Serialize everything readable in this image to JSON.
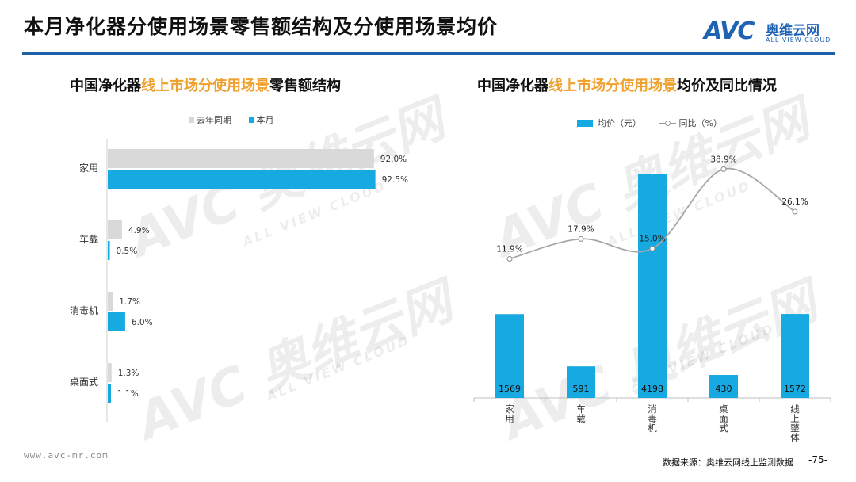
{
  "header": {
    "title": "本月净化器分使用场景零售额结构及分使用场景均价",
    "logo_avc": "AVC",
    "logo_cn": "奥维云网",
    "logo_en": "ALL VIEW CLOUD",
    "accent_color": "#1f5fa8"
  },
  "watermark": {
    "big": "AVC 奥维云网",
    "small": "ALL VIEW CLOUD"
  },
  "left_chart": {
    "heading_pre": "中国净化器",
    "heading_hl": "线上市场分使用场景",
    "heading_post": "零售额结构",
    "legend": [
      "去年同期",
      "本月"
    ]
  },
  "right_chart": {
    "heading_pre": "中国净化器",
    "heading_hl": "线上市场分使用场景",
    "heading_post": "均价及同比情况",
    "legend": [
      "均价（元）",
      "同比（%）"
    ]
  },
  "colors": {
    "last_year": "#d9d9d9",
    "this_month": "#17a9e1",
    "line": "#a6a6a6",
    "highlight": "#f0a02c"
  },
  "chart_data": [
    {
      "type": "bar",
      "orientation": "horizontal",
      "categories": [
        "家用",
        "车载",
        "消毒机",
        "桌面式"
      ],
      "series": [
        {
          "name": "去年同期",
          "values": [
            92.0,
            4.9,
            1.7,
            1.3
          ]
        },
        {
          "name": "本月",
          "values": [
            92.5,
            0.5,
            6.0,
            1.1
          ]
        }
      ],
      "value_labels": {
        "去年同期": [
          "92.0%",
          "4.9%",
          "1.7%",
          "1.3%"
        ],
        "本月": [
          "92.5%",
          "0.5%",
          "6.0%",
          "1.1%"
        ]
      },
      "xlim": [
        0,
        100
      ],
      "legend_position": "top"
    },
    {
      "type": "bar",
      "categories": [
        "家用",
        "车载",
        "消毒机",
        "桌面式",
        "线上整体"
      ],
      "series": [
        {
          "name": "均价（元）",
          "type": "bar",
          "values": [
            1569,
            591,
            4198,
            430,
            1572
          ]
        },
        {
          "name": "同比（%）",
          "type": "line",
          "values": [
            11.9,
            17.9,
            15.0,
            38.9,
            26.1
          ]
        }
      ],
      "line_labels": [
        "11.9%",
        "17.9%",
        "15.0%",
        "38.9%",
        "26.1%"
      ],
      "ylim_bar": [
        0,
        4600
      ],
      "ylim_line": [
        -30,
        44
      ],
      "legend_position": "top"
    }
  ],
  "footer": {
    "url": "www.avc-mr.com",
    "source": "数据来源：奥维云网线上监测数据",
    "page": "-75-"
  }
}
